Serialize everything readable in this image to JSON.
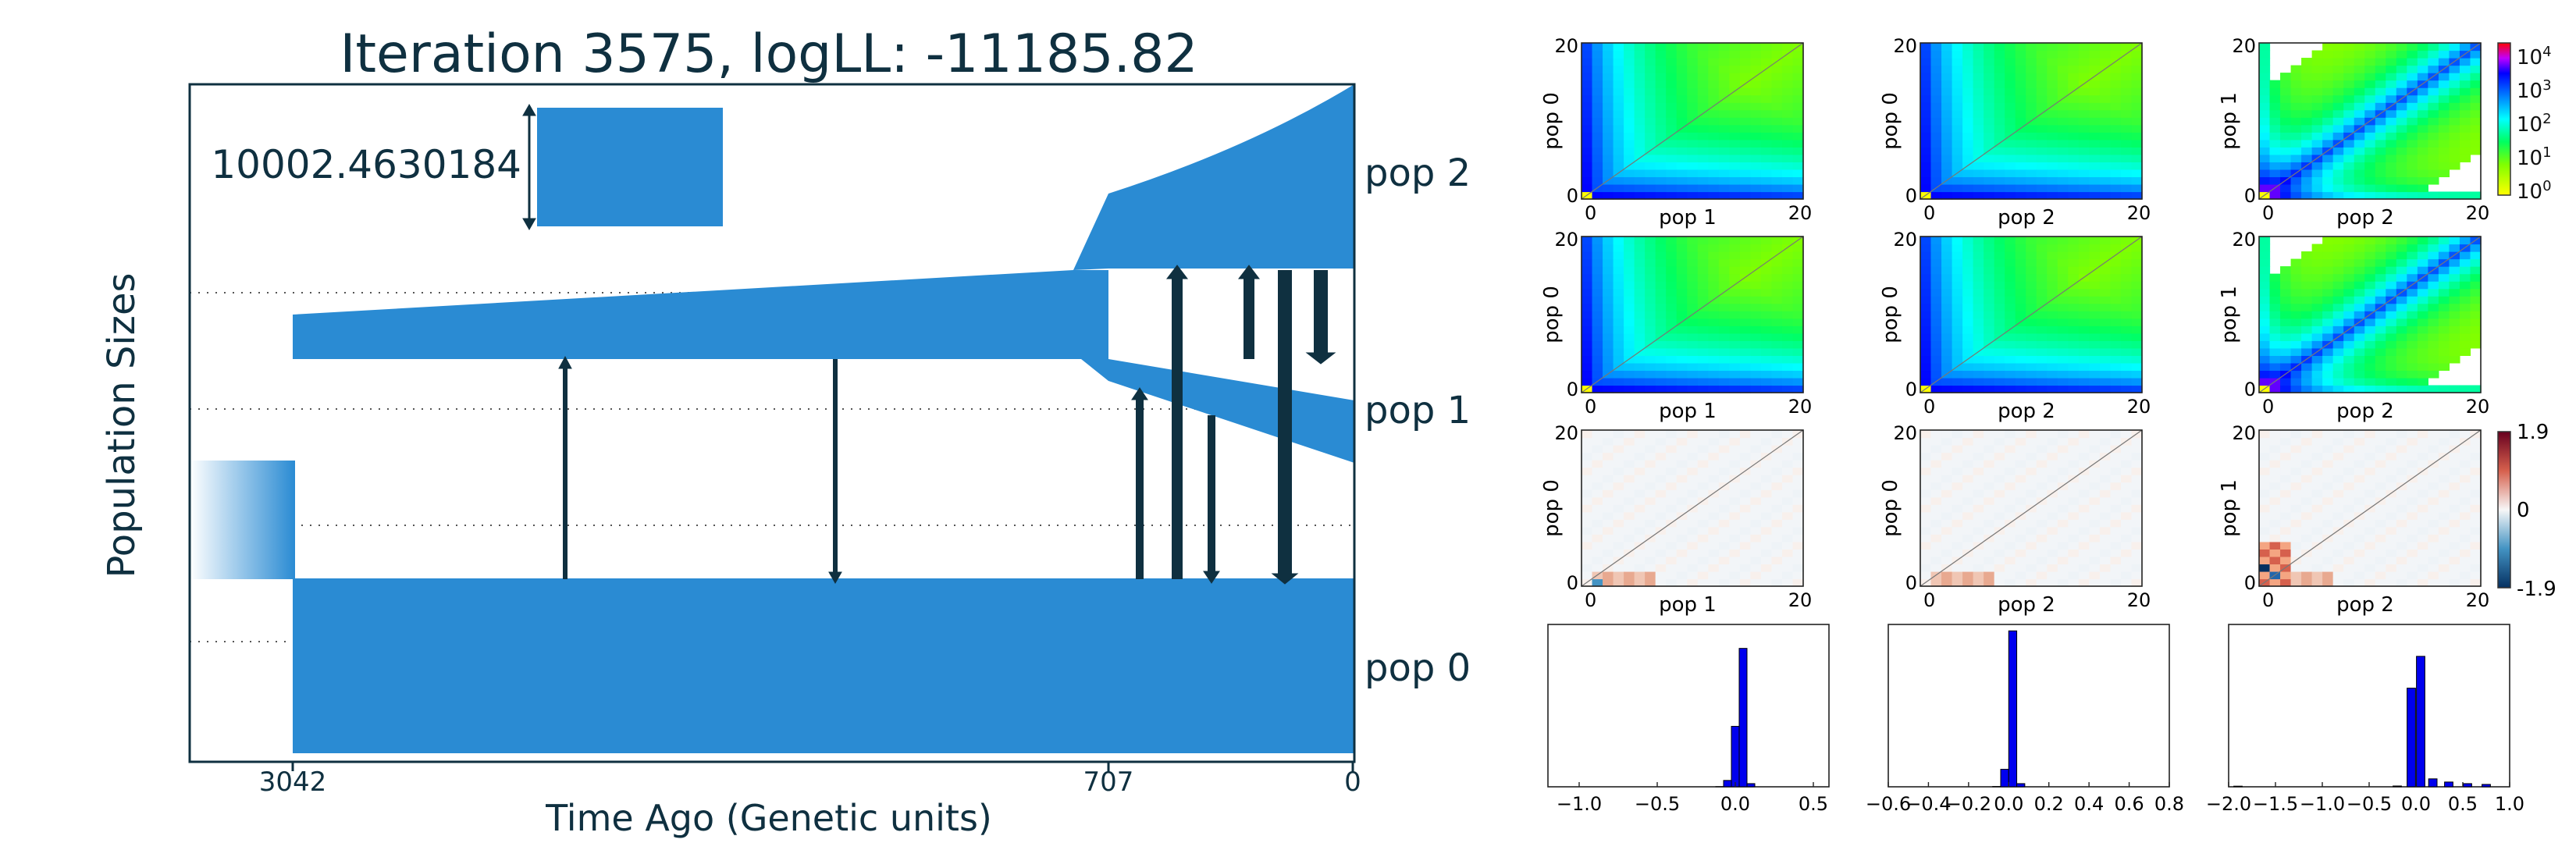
{
  "left_panel": {
    "title": "Iteration 3575, logLL:  -11185.82",
    "y_axis_label": "Population Sizes",
    "x_axis_label": "Time Ago (Genetic units)",
    "scale_bar_value": "10002.4630184",
    "time_ticks": [
      "3042",
      "707",
      "0"
    ],
    "populations": [
      "pop 2",
      "pop 1",
      "pop 0"
    ],
    "colors": {
      "population_fill": "#2a8bd3",
      "migration_arrow": "#0f3040",
      "frame": "#0f3040"
    }
  },
  "sfs_grid": {
    "axis_max_label": "20",
    "axis_min_label": "0",
    "columns": [
      {
        "x_label": "pop 1",
        "y_label": "pop 0"
      },
      {
        "x_label": "pop 2",
        "y_label": "pop 0"
      },
      {
        "x_label": "pop 2",
        "y_label": "pop 1"
      }
    ],
    "colorbar_sfs": {
      "scale": "log",
      "tick_labels": [
        {
          "base": "10",
          "exp": "4"
        },
        {
          "base": "10",
          "exp": "3"
        },
        {
          "base": "10",
          "exp": "2"
        },
        {
          "base": "10",
          "exp": "1"
        },
        {
          "base": "10",
          "exp": "0"
        }
      ]
    },
    "colorbar_residual": {
      "tick_labels": [
        "1.9",
        "0",
        "-1.9"
      ]
    }
  },
  "chart_data": [
    {
      "type": "bar",
      "series": [
        {
          "values": [
            0.001,
            0.04,
            0.38,
            0.87,
            0.02
          ]
        }
      ],
      "x": [
        -0.1,
        -0.05,
        0.0,
        0.05,
        0.1
      ],
      "xlim": [
        -1.2,
        0.6
      ],
      "x_tick_labels": [
        "−1.0",
        "−0.5",
        "0.0",
        "0.5"
      ],
      "color": "#0000ee"
    },
    {
      "type": "bar",
      "series": [
        {
          "values": [
            0.002,
            0.11,
            0.98,
            0.02
          ]
        }
      ],
      "x": [
        -0.06,
        -0.02,
        0.02,
        0.06
      ],
      "xlim": [
        -0.6,
        0.8
      ],
      "x_tick_labels": [
        "−0.6",
        "−0.4",
        "−0.2",
        "0.0",
        "0.2",
        "0.4",
        "0.6",
        "0.8"
      ],
      "color": "#0000ee"
    },
    {
      "type": "bar",
      "series": [
        {
          "values": [
            0.004,
            0.005,
            0.62,
            0.82,
            0.05,
            0.03,
            0.02,
            0.015
          ]
        }
      ],
      "x": [
        -1.9,
        -0.2,
        -0.05,
        0.05,
        0.18,
        0.35,
        0.55,
        0.75
      ],
      "xlim": [
        -2.0,
        1.0
      ],
      "x_tick_labels": [
        "−2.0",
        "−1.5",
        "−1.0",
        "−0.5",
        "0.0",
        "0.5",
        "1.0"
      ],
      "color": "#0000ee"
    }
  ]
}
